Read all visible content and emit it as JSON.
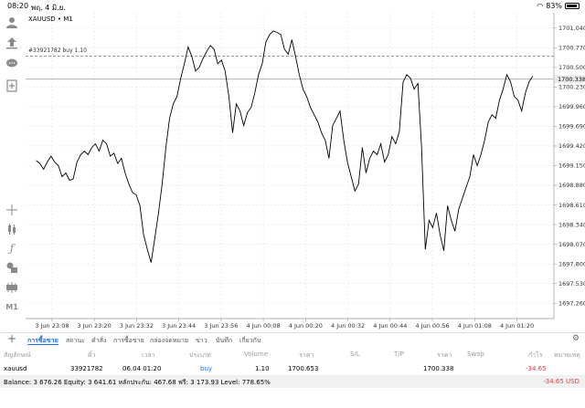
{
  "status_bar": {
    "time": "08:20",
    "date": "พฤ. 4 มิ.ย.",
    "battery": "83%",
    "battery_level": 0.83
  },
  "toolbar": {
    "icons": [
      "account-icon",
      "trade-icon",
      "chat-icon",
      "new-order-icon",
      "crosshair-icon",
      "indicators-icon",
      "function-icon",
      "objects-icon",
      "chart-type-icon",
      "timeframe-icon"
    ],
    "timeframe_label": "M1"
  },
  "chart": {
    "symbol_label": "XAUUSD • M1",
    "order_label": "#33921782 buy 1.10",
    "current_price_label": "1700.338"
  },
  "chart_data": {
    "type": "line",
    "x_ticks": [
      "3 Jun 23:08",
      "3 Jun 23:20",
      "3 Jun 23:32",
      "3 Jun 23:44",
      "3 Jun 23:56",
      "4 Jun 00:08",
      "4 Jun 00:20",
      "4 Jun 00:32",
      "4 Jun 00:44",
      "4 Jun 00:56",
      "4 Jun 01:08",
      "4 Jun 01:20"
    ],
    "y_ticks": [
      1701.04,
      1700.77,
      1700.5,
      1700.23,
      1699.96,
      1699.69,
      1699.42,
      1699.15,
      1698.88,
      1698.61,
      1698.34,
      1698.07,
      1697.8,
      1697.53,
      1697.26
    ],
    "ylim": [
      1697.05,
      1701.25
    ],
    "order_level": 1700.653,
    "current_price": 1700.338,
    "x_minutes_range": [
      -5,
      95
    ],
    "values": [
      1699.22,
      1699.18,
      1699.1,
      1699.2,
      1699.28,
      1699.2,
      1699.15,
      1699.0,
      1699.05,
      1698.95,
      1698.97,
      1699.2,
      1699.3,
      1699.35,
      1699.3,
      1699.4,
      1699.45,
      1699.35,
      1699.5,
      1699.45,
      1699.28,
      1699.32,
      1699.18,
      1699.25,
      1699.05,
      1698.9,
      1698.78,
      1698.75,
      1698.6,
      1698.2,
      1698.0,
      1697.82,
      1698.15,
      1698.5,
      1698.9,
      1699.4,
      1699.8,
      1700.0,
      1700.1,
      1700.35,
      1700.55,
      1700.78,
      1700.65,
      1700.45,
      1700.5,
      1700.62,
      1700.72,
      1700.8,
      1700.75,
      1700.55,
      1700.6,
      1700.45,
      1700.1,
      1699.6,
      1700.0,
      1699.9,
      1699.7,
      1699.88,
      1699.95,
      1700.15,
      1700.4,
      1700.55,
      1700.85,
      1700.95,
      1701.0,
      1700.98,
      1700.95,
      1700.75,
      1700.68,
      1700.88,
      1700.65,
      1700.4,
      1700.2,
      1700.1,
      1699.95,
      1699.85,
      1699.75,
      1699.6,
      1699.5,
      1699.25,
      1699.7,
      1699.8,
      1699.9,
      1699.5,
      1699.2,
      1699.0,
      1698.8,
      1698.9,
      1699.4,
      1699.05,
      1699.25,
      1699.35,
      1699.3,
      1699.45,
      1699.2,
      1699.3,
      1699.55,
      1699.45,
      1699.62,
      1700.3,
      1700.4,
      1700.35,
      1700.2,
      1700.28,
      1699.4,
      1698.0,
      1698.4,
      1698.3,
      1698.5,
      1698.2,
      1697.98,
      1698.6,
      1698.4,
      1698.25,
      1698.55,
      1698.7,
      1698.85,
      1699.0,
      1699.3,
      1699.15,
      1699.3,
      1699.5,
      1699.75,
      1699.85,
      1699.8,
      1700.05,
      1700.2,
      1700.4,
      1700.3,
      1700.1,
      1700.05,
      1699.9,
      1700.15,
      1700.3,
      1700.38
    ]
  },
  "tabs": {
    "items": [
      "การซื้อขาย",
      "สถานะ",
      "คำสั่ง",
      "การซื้อขาย",
      "กล่องจดหมาย",
      "ข่าว",
      "บันทึก",
      "เกี่ยวกับ"
    ]
  },
  "table": {
    "headers": [
      "สัญลักษณ์",
      "ตั๋ว",
      "เวลา",
      "ประเภท",
      "Volume",
      "ราคา",
      "S/L",
      "T/P",
      "ราคา",
      "Swap",
      "กำไร",
      "หมายเหตุ"
    ],
    "rows": [
      {
        "symbol": "xauusd",
        "ticket": "33921782",
        "time": "06.04 01:20",
        "type": "buy",
        "volume": "1.10",
        "open_price": "1700.653",
        "sl": "",
        "tp": "",
        "price": "1700.338",
        "swap": "",
        "profit": "-34.65",
        "comment": ""
      }
    ]
  },
  "summary": {
    "text": "Balance: 3 676.26 Equity: 3 641.61 หลักประกัน: 467.68 ฟรี: 3 173.93 Level: 778.65%",
    "profit": "-34.65  USD"
  },
  "colors": {
    "accent": "#1e6fd9",
    "loss": "#e23b3b",
    "line": "#000000"
  }
}
